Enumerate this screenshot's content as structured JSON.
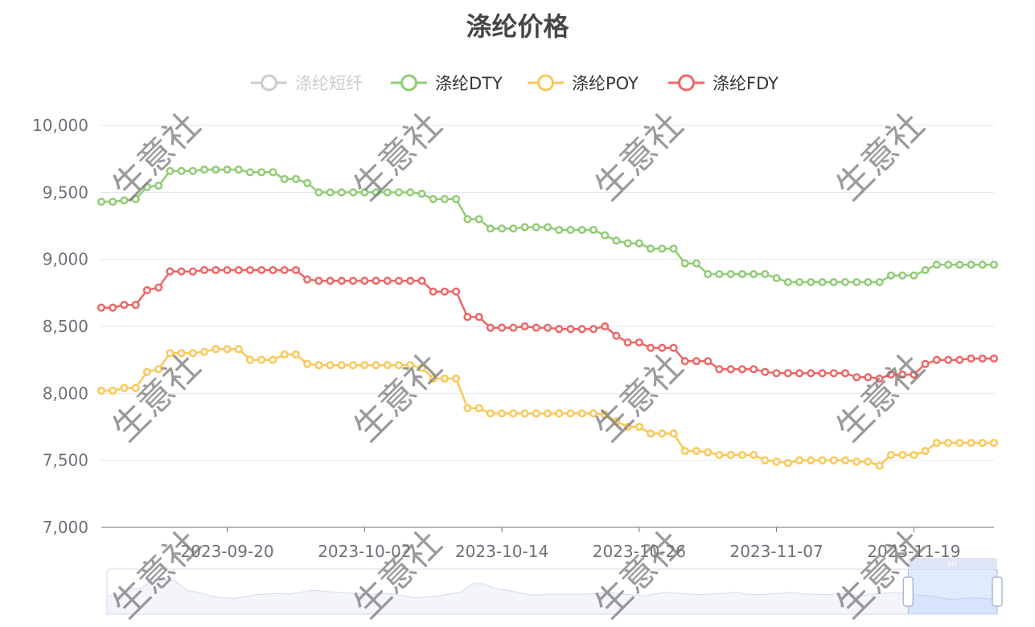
{
  "chart_data": {
    "type": "line",
    "title": "涤纶价格",
    "legend": {
      "placement": "top",
      "entries": [
        {
          "name": "涤纶短纤",
          "color": "#cccccc",
          "enabled": false
        },
        {
          "name": "涤纶DTY",
          "color": "#91cc75",
          "enabled": true
        },
        {
          "name": "涤纶POY",
          "color": "#fac858",
          "enabled": true
        },
        {
          "name": "涤纶FDY",
          "color": "#ee6666",
          "enabled": true
        }
      ]
    },
    "x_start": "2023-09-09",
    "x_end": "2023-11-26",
    "x_tick_labels": [
      "2023-09-20",
      "2023-10-02",
      "2023-10-14",
      "2023-10-26",
      "2023-11-07",
      "2023-11-19"
    ],
    "y_ticks": [
      "7,000",
      "7,500",
      "8,000",
      "8,500",
      "9,000",
      "9,500",
      "10,000"
    ],
    "ylim": [
      7000,
      10000
    ],
    "grid": "horizontal",
    "series": [
      {
        "name": "涤纶DTY",
        "color": "#91cc75",
        "values": [
          9430,
          9430,
          9440,
          9450,
          9540,
          9550,
          9660,
          9660,
          9660,
          9670,
          9670,
          9670,
          9670,
          9650,
          9650,
          9650,
          9600,
          9600,
          9570,
          9500,
          9500,
          9500,
          9500,
          9500,
          9500,
          9500,
          9500,
          9500,
          9490,
          9450,
          9450,
          9450,
          9300,
          9300,
          9230,
          9230,
          9230,
          9240,
          9240,
          9240,
          9220,
          9220,
          9220,
          9220,
          9180,
          9140,
          9120,
          9120,
          9080,
          9080,
          9080,
          8970,
          8970,
          8890,
          8890,
          8890,
          8890,
          8890,
          8890,
          8860,
          8830,
          8830,
          8830,
          8830,
          8830,
          8830,
          8830,
          8830,
          8830,
          8880,
          8880,
          8880,
          8920,
          8960,
          8960,
          8960,
          8960,
          8960,
          8960
        ]
      },
      {
        "name": "涤纶POY",
        "color": "#fac858",
        "values": [
          8020,
          8020,
          8040,
          8040,
          8160,
          8180,
          8300,
          8300,
          8300,
          8310,
          8330,
          8330,
          8330,
          8250,
          8250,
          8250,
          8290,
          8290,
          8220,
          8210,
          8210,
          8210,
          8210,
          8210,
          8210,
          8210,
          8210,
          8210,
          8190,
          8110,
          8110,
          8110,
          7890,
          7890,
          7850,
          7850,
          7850,
          7850,
          7850,
          7850,
          7850,
          7850,
          7850,
          7850,
          7840,
          7790,
          7750,
          7750,
          7700,
          7700,
          7700,
          7570,
          7570,
          7560,
          7540,
          7540,
          7540,
          7540,
          7500,
          7490,
          7480,
          7500,
          7500,
          7500,
          7500,
          7500,
          7490,
          7490,
          7460,
          7540,
          7540,
          7540,
          7570,
          7630,
          7630,
          7630,
          7630,
          7630,
          7630
        ]
      },
      {
        "name": "涤纶FDY",
        "color": "#ee6666",
        "values": [
          8640,
          8640,
          8660,
          8660,
          8770,
          8790,
          8910,
          8910,
          8910,
          8920,
          8920,
          8920,
          8920,
          8920,
          8920,
          8920,
          8920,
          8920,
          8850,
          8840,
          8840,
          8840,
          8840,
          8840,
          8840,
          8840,
          8840,
          8840,
          8840,
          8760,
          8760,
          8760,
          8570,
          8570,
          8490,
          8490,
          8490,
          8500,
          8490,
          8490,
          8480,
          8480,
          8480,
          8480,
          8500,
          8430,
          8380,
          8380,
          8340,
          8340,
          8340,
          8240,
          8240,
          8240,
          8180,
          8180,
          8180,
          8180,
          8160,
          8150,
          8150,
          8150,
          8150,
          8150,
          8150,
          8150,
          8120,
          8120,
          8110,
          8140,
          8140,
          8140,
          8220,
          8250,
          8250,
          8250,
          8260,
          8260,
          8260
        ]
      }
    ],
    "data_zoom": {
      "start_percent": 90,
      "end_percent": 100
    }
  },
  "watermark": "生意社",
  "colors": {
    "axis_text": "#6e7079",
    "grid": "#e0e6f1",
    "title": "#464646"
  }
}
